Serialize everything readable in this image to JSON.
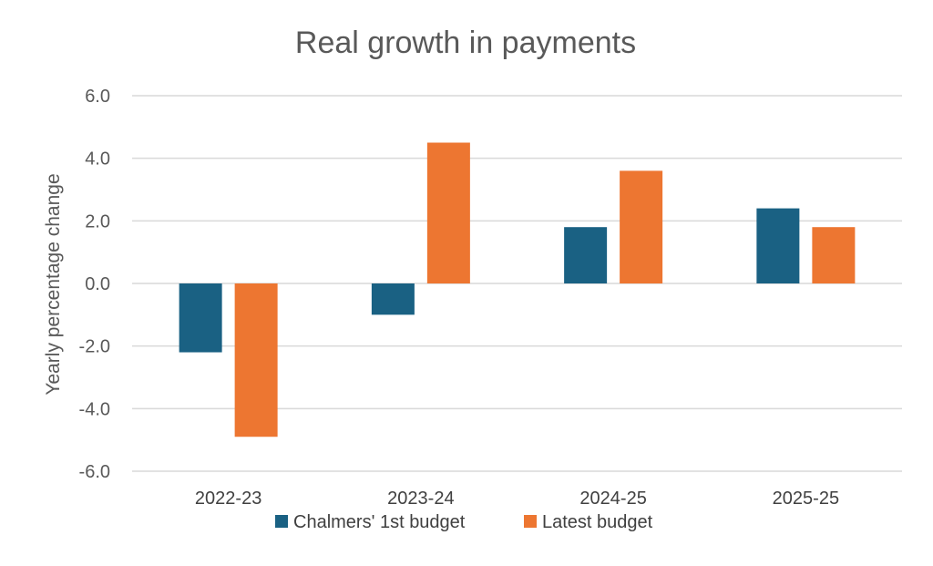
{
  "chart_data": {
    "type": "bar",
    "title": "Real growth in payments",
    "xlabel": "",
    "ylabel": "Yearly percentage change",
    "categories": [
      "2022-23",
      "2023-24",
      "2024-25",
      "2025-25"
    ],
    "series": [
      {
        "name": "Chalmers' 1st budget",
        "color": "#1a6183",
        "values": [
          -2.2,
          -1.0,
          1.8,
          2.4
        ]
      },
      {
        "name": "Latest budget",
        "color": "#ed7631",
        "values": [
          -4.9,
          4.5,
          3.6,
          1.8
        ]
      }
    ],
    "ylim": [
      -6.0,
      6.0
    ],
    "yticks": [
      "6.0",
      "4.0",
      "2.0",
      "0.0",
      "-2.0",
      "-4.0",
      "-6.0"
    ],
    "grid": true,
    "legend": "bottom"
  }
}
